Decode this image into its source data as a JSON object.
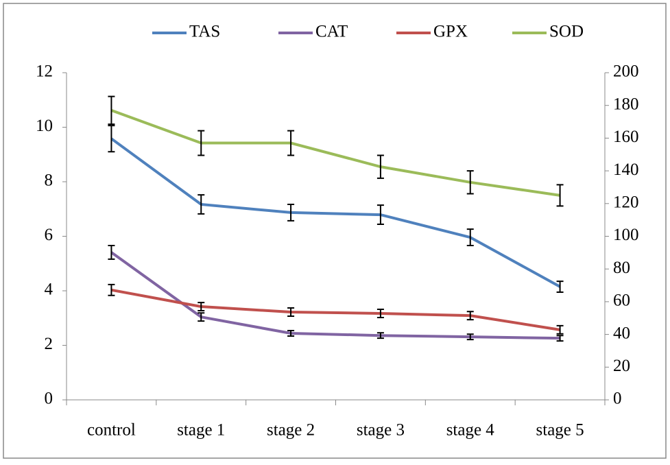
{
  "chart_data": {
    "type": "line",
    "categories": [
      "control",
      "stage 1",
      "stage 2",
      "stage 3",
      "stage 4",
      "stage 5"
    ],
    "series": [
      {
        "name": "TAS",
        "color": "#4f81bd",
        "values": [
          9.58,
          7.17,
          6.87,
          6.79,
          5.96,
          4.15
        ],
        "errors": [
          0.48,
          0.35,
          0.3,
          0.35,
          0.3,
          0.2
        ]
      },
      {
        "name": "CAT",
        "color": "#8064a2",
        "values": [
          5.41,
          3.04,
          2.44,
          2.36,
          2.31,
          2.26
        ],
        "errors": [
          0.25,
          0.15,
          0.1,
          0.1,
          0.1,
          0.1
        ]
      },
      {
        "name": "GPX",
        "color": "#c0504d",
        "values": [
          4.03,
          3.42,
          3.22,
          3.17,
          3.09,
          2.57
        ],
        "errors": [
          0.2,
          0.15,
          0.15,
          0.15,
          0.15,
          0.15
        ]
      },
      {
        "name": "SOD",
        "color": "#9bbb59",
        "axis": "y2",
        "values": [
          177,
          157,
          157,
          142.5,
          133,
          125
        ],
        "errors": [
          8.5,
          7.5,
          7.5,
          7,
          7,
          6.5
        ]
      }
    ],
    "ylim": [
      0,
      12
    ],
    "yticks": [
      0,
      2,
      4,
      6,
      8,
      10,
      12
    ],
    "y2lim": [
      0,
      200
    ],
    "y2ticks": [
      0,
      20,
      40,
      60,
      80,
      100,
      120,
      140,
      160,
      180,
      200
    ],
    "legend": "top"
  }
}
